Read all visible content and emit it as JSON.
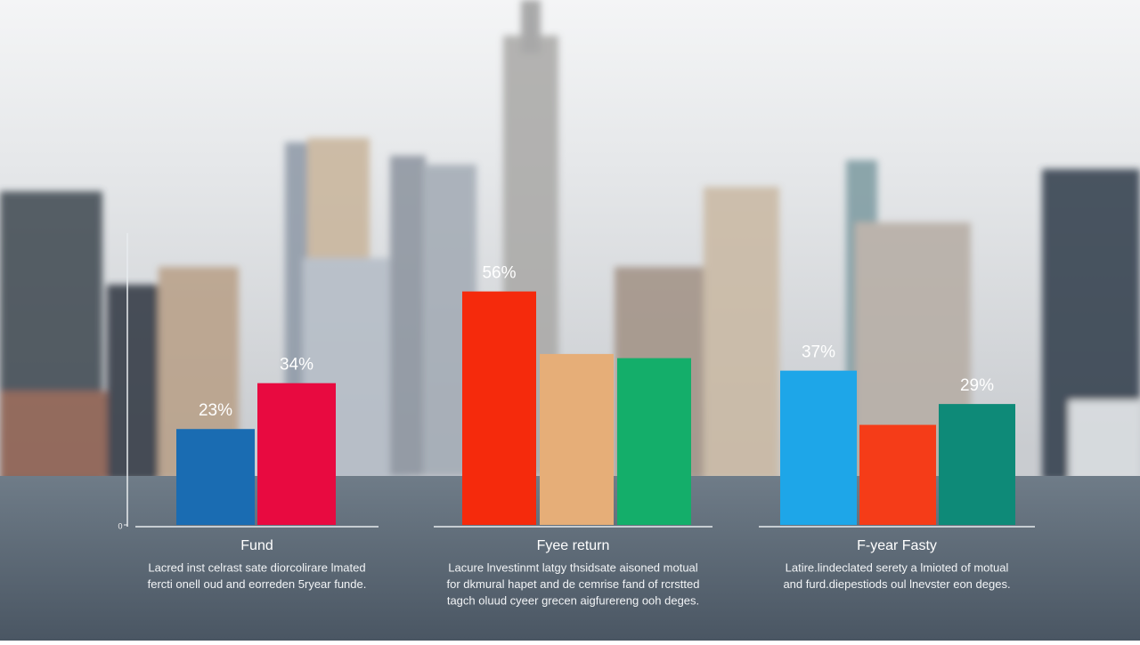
{
  "chart_data": [
    {
      "type": "bar",
      "title": "Fund",
      "annotations": [
        "Lacred inst celrast sate diorcolirare lmated",
        "fercti onell oud and eorreden 5ryear funde."
      ],
      "categories": [
        null,
        null
      ],
      "values": [
        23,
        34
      ],
      "value_labels": [
        "23%",
        "34%"
      ],
      "colors": [
        "#1a6cb2",
        "#e80a40"
      ],
      "ylim": [
        0,
        70
      ],
      "yticks": [
        0
      ]
    },
    {
      "type": "bar",
      "title": "Fyee return",
      "annotations": [
        "Lacure lnvestinmt latgy thsidsate aisoned motual",
        "for dkmural hapet and de cemrise fand of rcrstted",
        "tagch oluud cyeer grecen aigfurereng ooh deges."
      ],
      "categories": [
        null,
        null,
        null
      ],
      "values": [
        56,
        41,
        40
      ],
      "value_labels": [
        "56%",
        null,
        null
      ],
      "colors": [
        "#f52a0c",
        "#e6ae78",
        "#14ae6a"
      ],
      "ylim": [
        0,
        70
      ]
    },
    {
      "type": "bar",
      "title": "F-year Fasty",
      "annotations": [
        "Latire.lindeclated serety a lmioted of motual",
        "and furd.diepestiods oul lnevster eon deges."
      ],
      "categories": [
        null,
        null,
        null
      ],
      "values": [
        37,
        24,
        29
      ],
      "value_labels": [
        "37%",
        null,
        "29%"
      ],
      "colors": [
        "#1ea6e8",
        "#f53c18",
        "#0e8a78"
      ],
      "ylim": [
        0,
        70
      ]
    }
  ]
}
